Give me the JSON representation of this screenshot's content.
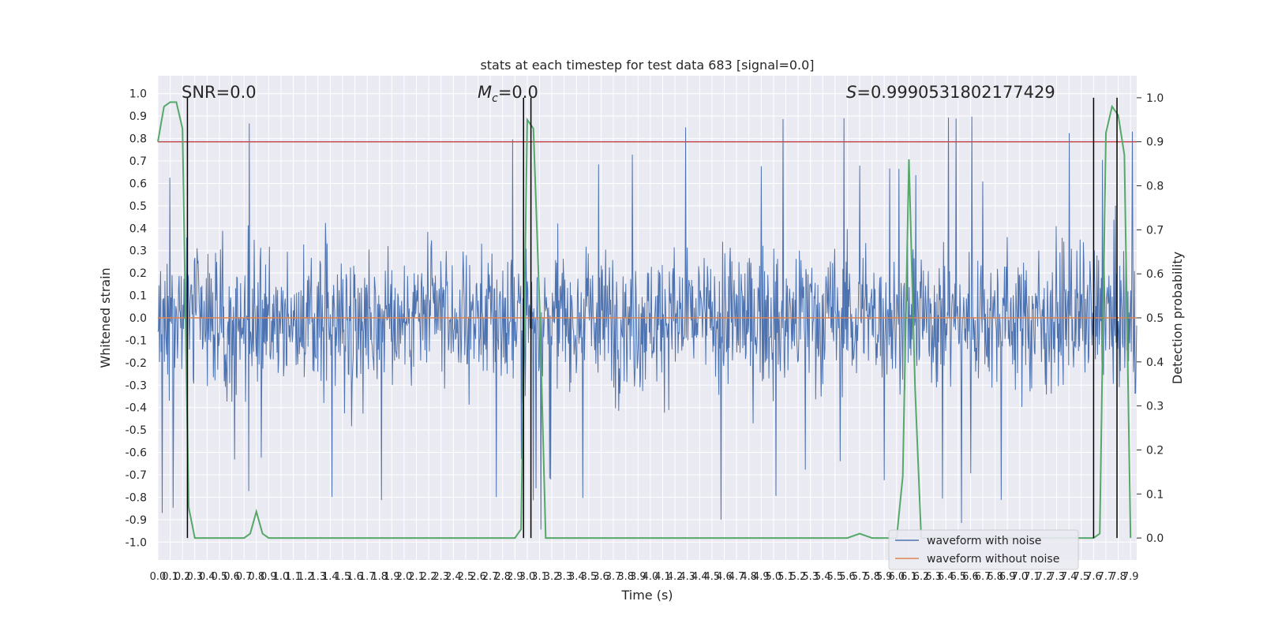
{
  "chart_data": {
    "type": "line",
    "title": "stats at each timestep for test data 683 [signal=0.0]",
    "xlabel": "Time (s)",
    "ylabel": "Whitened strain",
    "y2label": "Detection probability",
    "xlim": [
      0.0,
      7.95
    ],
    "ylim": [
      -1.08,
      1.08
    ],
    "y2lim": [
      -0.05,
      1.05
    ],
    "grid": true,
    "legend_position": "lower-right",
    "x_tick_labels": [
      "0.0",
      "0.1",
      "0.2",
      "0.3",
      "0.4",
      "0.5",
      "0.6",
      "0.7",
      "0.8",
      "0.9",
      "1.0",
      "1.1",
      "1.2",
      "1.3",
      "1.4",
      "1.5",
      "1.6",
      "1.7",
      "1.8",
      "1.9",
      "2.0",
      "2.1",
      "2.2",
      "2.3",
      "2.4",
      "2.5",
      "2.6",
      "2.7",
      "2.8",
      "2.9",
      "3.0",
      "3.1",
      "3.2",
      "3.3",
      "3.4",
      "3.5",
      "3.6",
      "3.7",
      "3.8",
      "3.9",
      "4.0",
      "4.1",
      "4.2",
      "4.3",
      "4.4",
      "4.5",
      "4.6",
      "4.7",
      "4.8",
      "4.9",
      "5.0",
      "5.1",
      "5.2",
      "5.3",
      "5.4",
      "5.5",
      "5.6",
      "5.7",
      "5.8",
      "5.9",
      "6.0",
      "6.1",
      "6.2",
      "6.3",
      "6.4",
      "6.5",
      "6.6",
      "6.7",
      "6.8",
      "6.9",
      "7.0",
      "7.1",
      "7.2",
      "7.3",
      "7.4",
      "7.5",
      "7.6",
      "7.7",
      "7.8",
      "7.9"
    ],
    "y_tick_labels": [
      "1.0",
      "0.9",
      "0.8",
      "0.7",
      "0.6",
      "0.5",
      "0.4",
      "0.3",
      "0.2",
      "0.1",
      "0.0",
      "-0.1",
      "-0.2",
      "-0.3",
      "-0.4",
      "-0.5",
      "-0.6",
      "-0.7",
      "-0.8",
      "-0.9",
      "-1.0"
    ],
    "y2_tick_labels": [
      "1.0",
      "0.9",
      "0.8",
      "0.7",
      "0.6",
      "0.5",
      "0.4",
      "0.3",
      "0.2",
      "0.1",
      "0.0"
    ],
    "annotations": {
      "snr_text": "SNR=0.0",
      "mc_prefix": "M",
      "mc_sub": "c",
      "mc_suffix": "=0.0",
      "s_prefix": "S",
      "s_suffix": "=0.9990531802177429"
    },
    "series": [
      {
        "name": "waveform with noise",
        "color": "#4c72b0",
        "axis": "left",
        "description_values": "dense whitened noise, amplitude mostly within ±0.4 with spikes up to about ±0.95"
      },
      {
        "name": "waveform without noise",
        "color": "#dd8452",
        "axis": "left",
        "values_constant": 0.0
      },
      {
        "name": "detection probability",
        "color": "#55a868",
        "axis": "right",
        "x": [
          0.0,
          0.05,
          0.1,
          0.15,
          0.2,
          0.25,
          0.3,
          0.35,
          0.4,
          0.5,
          0.6,
          0.7,
          0.75,
          0.8,
          0.85,
          0.9,
          1.0,
          1.5,
          2.0,
          2.5,
          2.8,
          2.9,
          2.95,
          3.0,
          3.05,
          3.1,
          3.15,
          3.2,
          3.3,
          3.5,
          4.0,
          4.5,
          5.0,
          5.5,
          5.6,
          5.7,
          5.8,
          5.9,
          6.0,
          6.05,
          6.1,
          6.15,
          6.2,
          6.3,
          6.5,
          7.0,
          7.5,
          7.6,
          7.65,
          7.7,
          7.75,
          7.8,
          7.85,
          7.9
        ],
        "y": [
          0.9,
          0.98,
          0.99,
          0.99,
          0.93,
          0.07,
          0.0,
          0.0,
          0.0,
          0.0,
          0.0,
          0.0,
          0.01,
          0.06,
          0.01,
          0.0,
          0.0,
          0.0,
          0.0,
          0.0,
          0.0,
          0.0,
          0.02,
          0.95,
          0.93,
          0.53,
          0.0,
          0.0,
          0.0,
          0.0,
          0.0,
          0.0,
          0.0,
          0.0,
          0.0,
          0.01,
          0.0,
          0.0,
          0.0,
          0.14,
          0.86,
          0.34,
          0.0,
          0.0,
          0.0,
          0.0,
          0.0,
          0.0,
          0.01,
          0.92,
          0.98,
          0.96,
          0.87,
          0.0
        ]
      }
    ],
    "threshold_line": {
      "color": "#c44e52",
      "y_right": 0.9
    },
    "vertical_lines_x": [
      0.24,
      2.97,
      3.03,
      7.6,
      7.79
    ]
  }
}
